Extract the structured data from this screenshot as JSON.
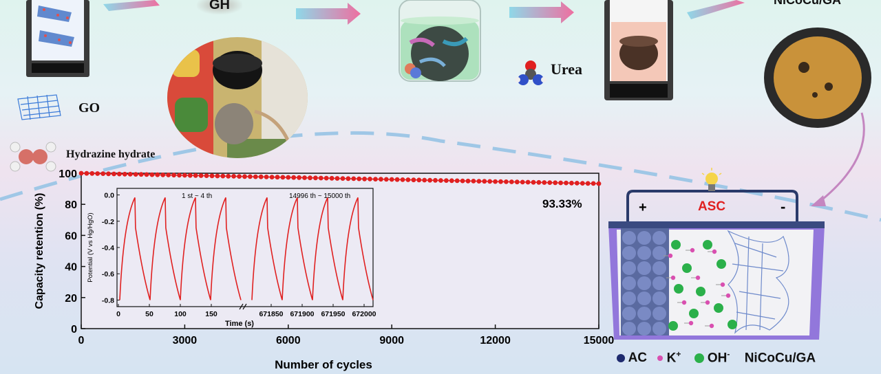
{
  "top_labels": {
    "gh": "GH",
    "product": "NiCoCu/GA",
    "go": "GO",
    "hydrazine": "Hydrazine hydrate",
    "urea": "Urea"
  },
  "chart_data": {
    "type": "line",
    "xlabel": "Number of cycles",
    "ylabel": "Capacity retention (%)",
    "xlim": [
      0,
      15000
    ],
    "ylim": [
      0,
      100
    ],
    "xticks": [
      0,
      3000,
      6000,
      9000,
      12000,
      15000
    ],
    "yticks": [
      0,
      20,
      40,
      60,
      80,
      100
    ],
    "x": [
      0,
      15000
    ],
    "y": [
      100,
      93.33
    ],
    "annotation": "93.33%",
    "color": "#e02020",
    "inset": {
      "ylabel": "Potential (V vs Hg/HgO)",
      "xlabel": "Time (s)",
      "ylim": [
        -0.85,
        0.05
      ],
      "yticks": [
        "0.0",
        "-0.2",
        "-0.4",
        "-0.6",
        "-0.8"
      ],
      "left_label": "1 st ~ 4 th",
      "right_label": "14996 th ~ 15000 th",
      "left_xticks": [
        "0",
        "50",
        "100",
        "150"
      ],
      "right_xticks": [
        "671850",
        "671900",
        "671950",
        "672000"
      ],
      "cycles_per_panel": 4,
      "v_max": -0.02,
      "v_min": -0.8
    }
  },
  "device": {
    "title": "ASC",
    "plus": "+",
    "minus": "-",
    "legend": {
      "ac": "AC",
      "k": "K",
      "k_sup": "+",
      "oh": "OH",
      "oh_sup": "-",
      "electrode": "NiCoCu/GA"
    }
  },
  "colors": {
    "arrow": "#ee6fa0",
    "red": "#e02020",
    "navy": "#1e2a6e",
    "k_ion": "#d94fb0",
    "oh_ion": "#2bb04a",
    "device_purple": "#7b5cd6"
  }
}
